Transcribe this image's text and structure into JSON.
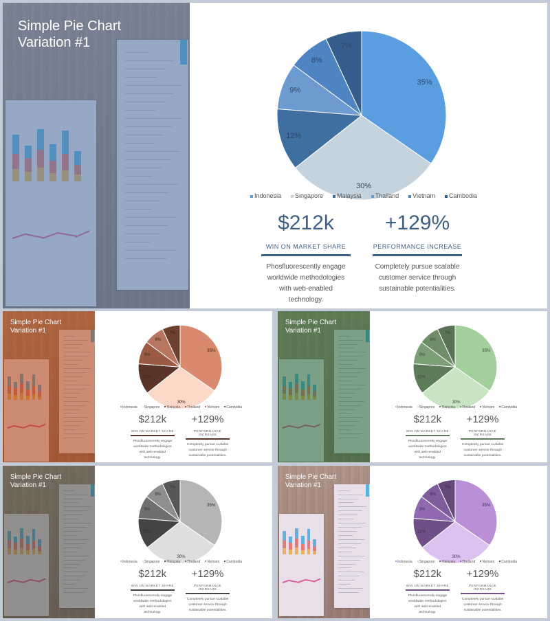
{
  "slides": [
    {
      "id": "blue",
      "title": "Simple Pie Chart\nVariation #1",
      "colors": {
        "tint": "rgba(88,120,168,0.60)",
        "slices": [
          "#5a9ee0",
          "#c5d3df",
          "#3f6fa1",
          "#6d9bd1",
          "#4f84c3",
          "#355e8c"
        ],
        "value_text": "#3e5f86",
        "rule": "#3e5f86",
        "slice_label": "#2d4663"
      },
      "chart_data": {
        "type": "pie",
        "labels": [
          "Indonesia",
          "Singapore",
          "Malaysia",
          "Thailand",
          "Vietnam",
          "Cambodia"
        ],
        "values": [
          35,
          30,
          12,
          9,
          8,
          7
        ],
        "value_labels": [
          "35%",
          "30%",
          "12%",
          "9%",
          "8%",
          "7%"
        ],
        "legend_position": "bottom"
      },
      "stats": [
        {
          "value": "$212k",
          "label": "WIN ON MARKET SHARE",
          "desc": "Phosfluorescently engage worldwide methodologies with web-enabled technology."
        },
        {
          "value": "+129%",
          "label": "PERFORMANCE INCREASE",
          "desc": "Completely pursue scalable customer service through sustainable potentialities."
        }
      ]
    },
    {
      "id": "orange",
      "title": "Simple Pie Chart\nVariation #1",
      "colors": {
        "tint": "rgba(178,72,34,0.60)",
        "slices": [
          "#d9896d",
          "#fcd8c8",
          "#5a3428",
          "#9c5a44",
          "#b87660",
          "#6e4031"
        ],
        "value_text": "#555555",
        "rule": "#5a3428",
        "slice_label": "#3a2218"
      },
      "chart_data": {
        "type": "pie",
        "labels": [
          "Indonesia",
          "Singapore",
          "Malaysia",
          "Thailand",
          "Vietnam",
          "Cambodia"
        ],
        "values": [
          35,
          30,
          12,
          9,
          8,
          7
        ],
        "value_labels": [
          "35%",
          "30%",
          "12%",
          "9%",
          "8%",
          "7%"
        ],
        "legend_position": "bottom"
      },
      "stats": [
        {
          "value": "$212k",
          "label": "WIN ON MARKET SHARE",
          "desc": "Phosfluorescently engage worldwide methodologies with web-enabled technology."
        },
        {
          "value": "+129%",
          "label": "PERFORMANCE INCREASE",
          "desc": "Completely pursue scalable customer service through sustainable potentialities."
        }
      ]
    },
    {
      "id": "green",
      "title": "Simple Pie Chart\nVariation #1",
      "colors": {
        "tint": "rgba(50,110,70,0.62)",
        "slices": [
          "#a3cf9d",
          "#c9e4c3",
          "#5d7a59",
          "#7d9f77",
          "#6f8d69",
          "#5a7356"
        ],
        "value_text": "#555555",
        "rule": "#5d7a59",
        "slice_label": "#33492f"
      },
      "chart_data": {
        "type": "pie",
        "labels": [
          "Indonesia",
          "Singapore",
          "Malaysia",
          "Thailand",
          "Vietnam",
          "Cambodia"
        ],
        "values": [
          35,
          30,
          12,
          9,
          8,
          7
        ],
        "value_labels": [
          "35%",
          "30%",
          "12%",
          "9%",
          "8%",
          "7%"
        ],
        "legend_position": "bottom"
      },
      "stats": [
        {
          "value": "$212k",
          "label": "WIN ON MARKET SHARE",
          "desc": "Phosfluorescently engage worldwide methodologies with web-enabled technology."
        },
        {
          "value": "+129%",
          "label": "PERFORMANCE INCREASE",
          "desc": "Completely pursue scalable customer service through sustainable potentialities."
        }
      ]
    },
    {
      "id": "gray",
      "title": "Simple Pie Chart\nVariation #1",
      "colors": {
        "tint": "rgba(80,80,80,0.60)",
        "slices": [
          "#b5b5b5",
          "#dedede",
          "#444444",
          "#6f6f6f",
          "#8f8f8f",
          "#575757"
        ],
        "value_text": "#555555",
        "rule": "#444444",
        "slice_label": "#333333"
      },
      "chart_data": {
        "type": "pie",
        "labels": [
          "Indonesia",
          "Singapore",
          "Malaysia",
          "Thailand",
          "Vietnam",
          "Cambodia"
        ],
        "values": [
          35,
          30,
          12,
          9,
          8,
          7
        ],
        "value_labels": [
          "35%",
          "30%",
          "12%",
          "9%",
          "8%",
          "7%"
        ],
        "legend_position": "bottom"
      },
      "stats": [
        {
          "value": "$212k",
          "label": "WIN ON MARKET SHARE",
          "desc": "Phosfluorescently engage worldwide methodologies with web-enabled technology."
        },
        {
          "value": "+129%",
          "label": "PERFORMANCE INCREASE",
          "desc": "Completely pursue scalable customer service through sustainable potentialities."
        }
      ]
    },
    {
      "id": "purple",
      "title": "Simple Pie Chart\nVariation #1",
      "colors": {
        "tint": "rgba(200,160,220,0.22)",
        "slices": [
          "#b990d6",
          "#dcc2f0",
          "#6e4f88",
          "#9069b0",
          "#7f5c9c",
          "#634878"
        ],
        "value_text": "#555555",
        "rule": "#6e4f88",
        "slice_label": "#402c52"
      },
      "chart_data": {
        "type": "pie",
        "labels": [
          "Indonesia",
          "Singapore",
          "Malaysia",
          "Thailand",
          "Vietnam",
          "Cambodia"
        ],
        "values": [
          35,
          30,
          12,
          9,
          8,
          7
        ],
        "value_labels": [
          "35%",
          "30%",
          "12%",
          "9%",
          "8%",
          "7%"
        ],
        "legend_position": "bottom"
      },
      "stats": [
        {
          "value": "$212k",
          "label": "WIN ON MARKET SHARE",
          "desc": "Phosfluorescently engage worldwide methodologies with web-enabled technology."
        },
        {
          "value": "+129%",
          "label": "PERFORMANCE INCREASE",
          "desc": "Completely pursue scalable customer service through sustainable potentialities."
        }
      ]
    }
  ]
}
